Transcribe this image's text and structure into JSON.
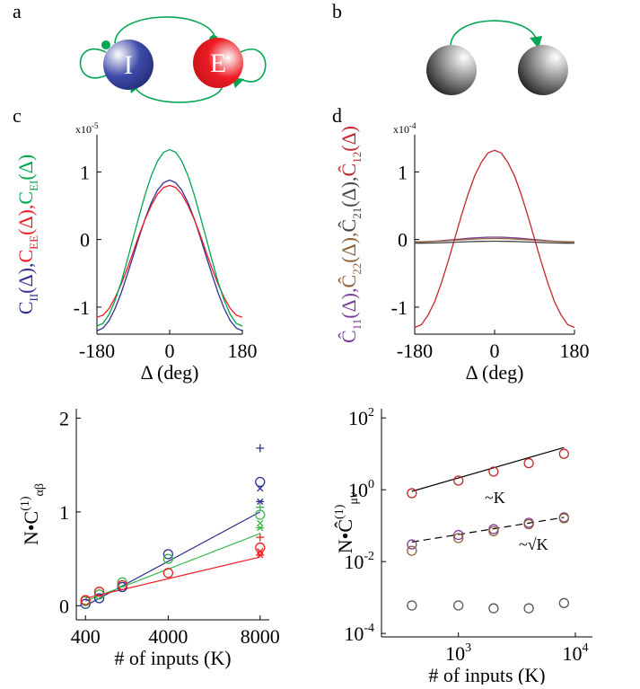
{
  "diagrams": [
    {
      "panel": "a",
      "nodes": [
        {
          "label": "I"
        },
        {
          "label": "E"
        }
      ]
    },
    {
      "panel": "b"
    }
  ],
  "chart_data": [
    {
      "type": "line",
      "panel": "c",
      "multiplier": {
        "base": "x10",
        "exp": "-5"
      },
      "xlabel": "Δ (deg)",
      "x": [
        -180,
        -165,
        -150,
        -135,
        -120,
        -105,
        -90,
        -75,
        -60,
        -45,
        -30,
        -15,
        0,
        15,
        30,
        45,
        60,
        75,
        90,
        105,
        120,
        135,
        150,
        165,
        180
      ],
      "xlim": [
        -180,
        180
      ],
      "xticks": [
        -180,
        0,
        180
      ],
      "ylim": [
        -1.4,
        1.55
      ],
      "yticks": [
        -1,
        0,
        1
      ],
      "series": [
        {
          "name": "C",
          "sub": "II",
          "suffix": "(Δ),",
          "color": "#2e3192",
          "values": [
            -1.35,
            -1.31,
            -1.2,
            -1.02,
            -0.79,
            -0.52,
            -0.24,
            0.05,
            0.32,
            0.55,
            0.73,
            0.84,
            0.88,
            0.84,
            0.73,
            0.55,
            0.32,
            0.05,
            -0.24,
            -0.52,
            -0.79,
            -1.02,
            -1.2,
            -1.31,
            -1.35
          ]
        },
        {
          "name": "C",
          "sub": "EE",
          "suffix": "(Δ),",
          "color": "#ed1c24",
          "values": [
            -1.15,
            -1.12,
            -1.02,
            -0.86,
            -0.66,
            -0.43,
            -0.18,
            0.08,
            0.31,
            0.51,
            0.67,
            0.77,
            0.8,
            0.77,
            0.67,
            0.51,
            0.31,
            0.08,
            -0.18,
            -0.43,
            -0.66,
            -0.86,
            -1.02,
            -1.12,
            -1.15
          ]
        },
        {
          "name": "C",
          "sub": "EI",
          "suffix": "(Δ)",
          "color": "#00a651",
          "values": [
            -1.28,
            -1.24,
            -1.11,
            -0.9,
            -0.63,
            -0.31,
            0.03,
            0.36,
            0.68,
            0.95,
            1.16,
            1.29,
            1.33,
            1.29,
            1.16,
            0.95,
            0.68,
            0.36,
            0.03,
            -0.31,
            -0.63,
            -0.9,
            -1.11,
            -1.24,
            -1.28
          ]
        }
      ]
    },
    {
      "type": "line",
      "panel": "d",
      "multiplier": {
        "base": "x10",
        "exp": "-4"
      },
      "xlabel": "Δ (deg)",
      "x": [
        -180,
        -165,
        -150,
        -135,
        -120,
        -105,
        -90,
        -75,
        -60,
        -45,
        -30,
        -15,
        0,
        15,
        30,
        45,
        60,
        75,
        90,
        105,
        120,
        135,
        150,
        165,
        180
      ],
      "xlim": [
        -180,
        180
      ],
      "xticks": [
        -180,
        0,
        180
      ],
      "ylim": [
        -1.4,
        1.55
      ],
      "yticks": [
        -1,
        0,
        1
      ],
      "series": [
        {
          "name": "Ĉ",
          "sub": "11",
          "suffix": "(Δ),",
          "color": "#7f3f98",
          "values": [
            -0.035,
            -0.034,
            -0.03,
            -0.025,
            -0.018,
            -0.009,
            0,
            0.009,
            0.018,
            0.025,
            0.03,
            0.034,
            0.035,
            0.034,
            0.03,
            0.025,
            0.018,
            0.009,
            0,
            -0.009,
            -0.018,
            -0.025,
            -0.03,
            -0.034,
            -0.035
          ]
        },
        {
          "name": "Ĉ",
          "sub": "22",
          "suffix": "(Δ),",
          "color": "#8c6239",
          "values": [
            -0.035,
            -0.034,
            -0.032,
            -0.028,
            -0.023,
            -0.016,
            -0.01,
            -0.004,
            0.003,
            0.008,
            0.012,
            0.014,
            0.015,
            0.014,
            0.012,
            0.008,
            0.003,
            -0.004,
            -0.01,
            -0.016,
            -0.023,
            -0.028,
            -0.032,
            -0.034,
            -0.035
          ]
        },
        {
          "name": "Ĉ",
          "sub": "21",
          "suffix": "(Δ),",
          "color": "#444444",
          "values": [
            -0.055,
            -0.054,
            -0.053,
            -0.051,
            -0.048,
            -0.044,
            -0.04,
            -0.036,
            -0.033,
            -0.029,
            -0.027,
            -0.026,
            -0.025,
            -0.026,
            -0.027,
            -0.029,
            -0.033,
            -0.036,
            -0.04,
            -0.044,
            -0.048,
            -0.051,
            -0.053,
            -0.054,
            -0.055
          ]
        },
        {
          "name": "Ĉ",
          "sub": "12",
          "suffix": "(Δ)",
          "color": "#c1272d",
          "values": [
            -1.3,
            -1.26,
            -1.12,
            -0.92,
            -0.645,
            -0.33,
            0.01,
            0.35,
            0.665,
            0.94,
            1.14,
            1.28,
            1.32,
            1.28,
            1.14,
            0.94,
            0.665,
            0.35,
            0.01,
            -0.33,
            -0.645,
            -0.92,
            -1.12,
            -1.26,
            -1.3
          ]
        }
      ]
    },
    {
      "type": "scatter",
      "xlabel": "# of inputs (K)",
      "ylabel": {
        "text": "N•C",
        "sup": "(1)",
        "sub": "αβ"
      },
      "x": [
        400,
        1000,
        2000,
        4000,
        8000
      ],
      "xlim": [
        0,
        8400
      ],
      "xticks": [
        400,
        4000,
        8000
      ],
      "ylim": [
        -0.15,
        2.1
      ],
      "yticks": [
        0,
        1,
        2
      ],
      "series": [
        {
          "marker": "o",
          "color": "#2e3192",
          "values": [
            0.02,
            0.08,
            0.2,
            0.55,
            1.32
          ]
        },
        {
          "marker": "o",
          "color": "#39b54a",
          "values": [
            0.05,
            0.12,
            0.25,
            0.5,
            0.97
          ]
        },
        {
          "marker": "o",
          "color": "#ed1c24",
          "values": [
            0.06,
            0.15,
            0.22,
            0.35,
            0.62
          ]
        },
        {
          "marker": "+",
          "color": "#2e3192",
          "values": [
            null,
            null,
            null,
            null,
            1.68
          ]
        },
        {
          "marker": "x",
          "color": "#2e3192",
          "values": [
            null,
            null,
            null,
            null,
            1.25
          ]
        },
        {
          "marker": "*",
          "color": "#2e3192",
          "values": [
            null,
            null,
            null,
            null,
            1.11
          ]
        },
        {
          "marker": "+",
          "color": "#39b54a",
          "values": [
            null,
            null,
            null,
            null,
            1.05
          ]
        },
        {
          "marker": "x",
          "color": "#39b54a",
          "values": [
            null,
            null,
            null,
            null,
            0.88
          ]
        },
        {
          "marker": "*",
          "color": "#39b54a",
          "values": [
            null,
            null,
            null,
            null,
            0.83
          ]
        },
        {
          "marker": "+",
          "color": "#ed1c24",
          "values": [
            null,
            null,
            null,
            null,
            0.73
          ]
        },
        {
          "marker": "x",
          "color": "#ed1c24",
          "values": [
            null,
            null,
            null,
            null,
            0.58
          ]
        },
        {
          "marker": "*",
          "color": "#ed1c24",
          "values": [
            null,
            null,
            null,
            null,
            0.54
          ]
        }
      ],
      "fits": [
        {
          "color": "#2e3192",
          "x": [
            400,
            8000
          ],
          "values": [
            0,
            1.0
          ]
        },
        {
          "color": "#39b54a",
          "x": [
            400,
            8000
          ],
          "values": [
            0.05,
            0.77
          ]
        },
        {
          "color": "#ed1c24",
          "x": [
            400,
            8000
          ],
          "values": [
            0.08,
            0.52
          ]
        }
      ]
    },
    {
      "type": "scatter",
      "xlog": true,
      "ylog": true,
      "xlabel": "# of inputs (K)",
      "ylabel": {
        "text": "N•Ĉ",
        "sup": "(1)",
        "sub": "μν"
      },
      "x": [
        400,
        1000,
        2000,
        4000,
        8000
      ],
      "xlim": [
        220,
        14000
      ],
      "xticks": [
        {
          "value": 1000,
          "label": "10",
          "exp": "3"
        },
        {
          "value": 10000,
          "label": "10",
          "exp": "4"
        }
      ],
      "ylim": [
        8e-05,
        180
      ],
      "yticks": [
        {
          "value": 0.0001,
          "label": "10",
          "exp": "-4"
        },
        {
          "value": 0.01,
          "label": "10",
          "exp": "-2"
        },
        {
          "value": 1,
          "label": "10",
          "exp": "0"
        },
        {
          "value": 100,
          "label": "10",
          "exp": "2"
        }
      ],
      "series": [
        {
          "marker": "o",
          "color": "#c1272d",
          "values": [
            0.8,
            1.8,
            3.2,
            5.5,
            10
          ]
        },
        {
          "marker": "o",
          "color": "#7f3f98",
          "values": [
            0.03,
            0.055,
            0.08,
            0.12,
            0.17
          ]
        },
        {
          "marker": "o",
          "color": "#8c6239",
          "values": [
            0.02,
            0.045,
            0.07,
            0.11,
            0.16
          ]
        },
        {
          "marker": "o",
          "color": "#555555",
          "values": [
            0.0006,
            0.0006,
            0.0005,
            0.0005,
            0.0007
          ]
        }
      ],
      "fits": [
        {
          "color": "#000000",
          "x": [
            400,
            8000
          ],
          "values": [
            0.9,
            15
          ]
        },
        {
          "color": "#000000",
          "dash": true,
          "x": [
            400,
            8000
          ],
          "values": [
            0.035,
            0.17
          ]
        }
      ],
      "annotations": [
        "~K",
        "~√K"
      ]
    }
  ]
}
